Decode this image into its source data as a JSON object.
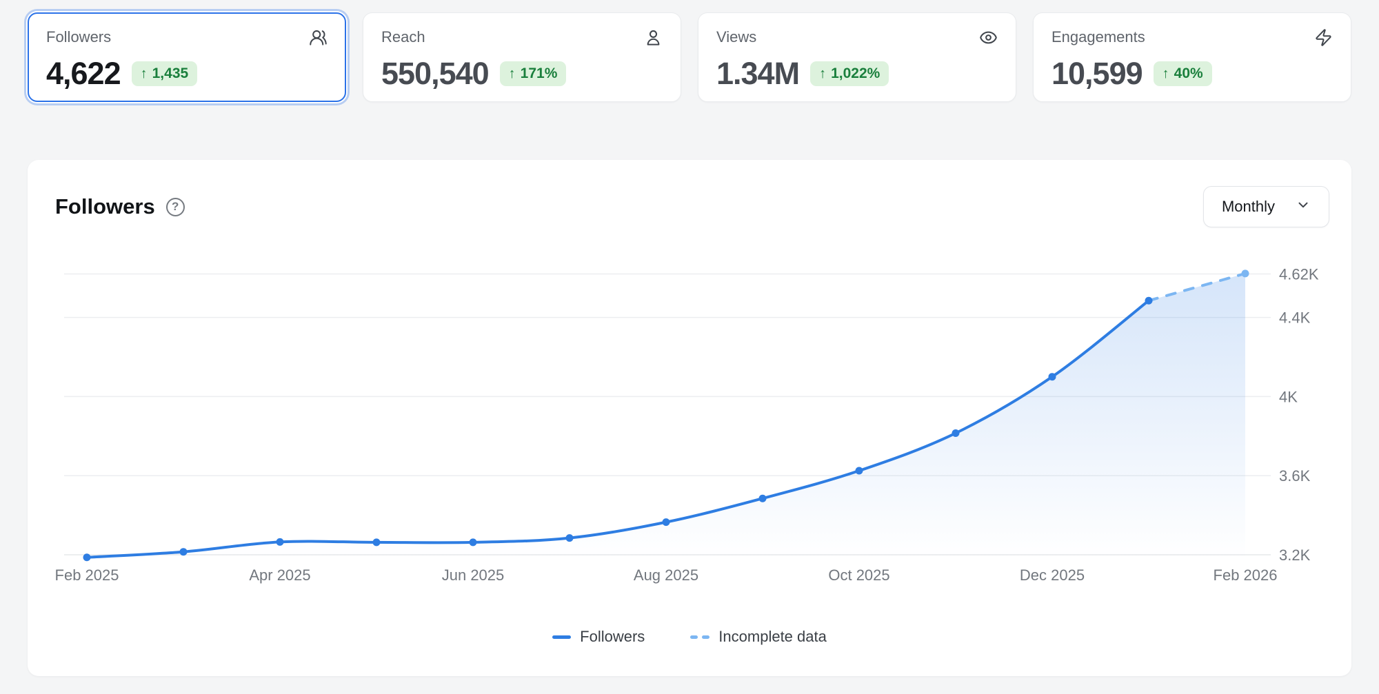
{
  "colors": {
    "accent_blue": "#2e7de2",
    "incomplete_blue": "#7cb6f2",
    "badge_bg": "#ddf2dd",
    "badge_text": "#1a7f3c",
    "page_bg": "#f4f5f6",
    "gridline": "#eceef0",
    "axis_label": "#72777e"
  },
  "badge_arrow": "↑",
  "stat_cards": [
    {
      "label": "Followers",
      "value": "4,622",
      "delta": "1,435",
      "icon": "users-icon",
      "selected": true
    },
    {
      "label": "Reach",
      "value": "550,540",
      "delta": "171%",
      "icon": "user-icon",
      "selected": false
    },
    {
      "label": "Views",
      "value": "1.34M",
      "delta": "1,022%",
      "icon": "eye-icon",
      "selected": false
    },
    {
      "label": "Engagements",
      "value": "10,599",
      "delta": "40%",
      "icon": "zap-icon",
      "selected": false
    }
  ],
  "chart_card": {
    "title": "Followers",
    "period_selector": {
      "value": "Monthly"
    },
    "legend": [
      {
        "label": "Followers",
        "style": "solid"
      },
      {
        "label": "Incomplete data",
        "style": "dashed"
      }
    ]
  },
  "chart_data": {
    "type": "line",
    "title": "Followers",
    "x": [
      "Feb 2025",
      "Mar 2025",
      "Apr 2025",
      "May 2025",
      "Jun 2025",
      "Jul 2025",
      "Aug 2025",
      "Sep 2025",
      "Oct 2025",
      "Nov 2025",
      "Dec 2025",
      "Jan 2026",
      "Feb 2026"
    ],
    "series": [
      {
        "name": "Followers",
        "values": [
          3187,
          3215,
          3265,
          3263,
          3263,
          3285,
          3365,
          3485,
          3625,
          3815,
          4100,
          4485,
          4622
        ]
      }
    ],
    "incomplete_from_index": 11,
    "x_tick_labels": [
      "Feb 2025",
      "Apr 2025",
      "Jun 2025",
      "Aug 2025",
      "Oct 2025",
      "Dec 2025",
      "Feb 2026"
    ],
    "y_ticks": [
      {
        "label": "3.2K",
        "value": 3200
      },
      {
        "label": "3.6K",
        "value": 3600
      },
      {
        "label": "4K",
        "value": 4000
      },
      {
        "label": "4.4K",
        "value": 4400
      },
      {
        "label": "4.62K",
        "value": 4620
      }
    ],
    "ylim": [
      3150,
      4700
    ],
    "grid": true,
    "legend_position": "bottom",
    "area_fill": true
  }
}
